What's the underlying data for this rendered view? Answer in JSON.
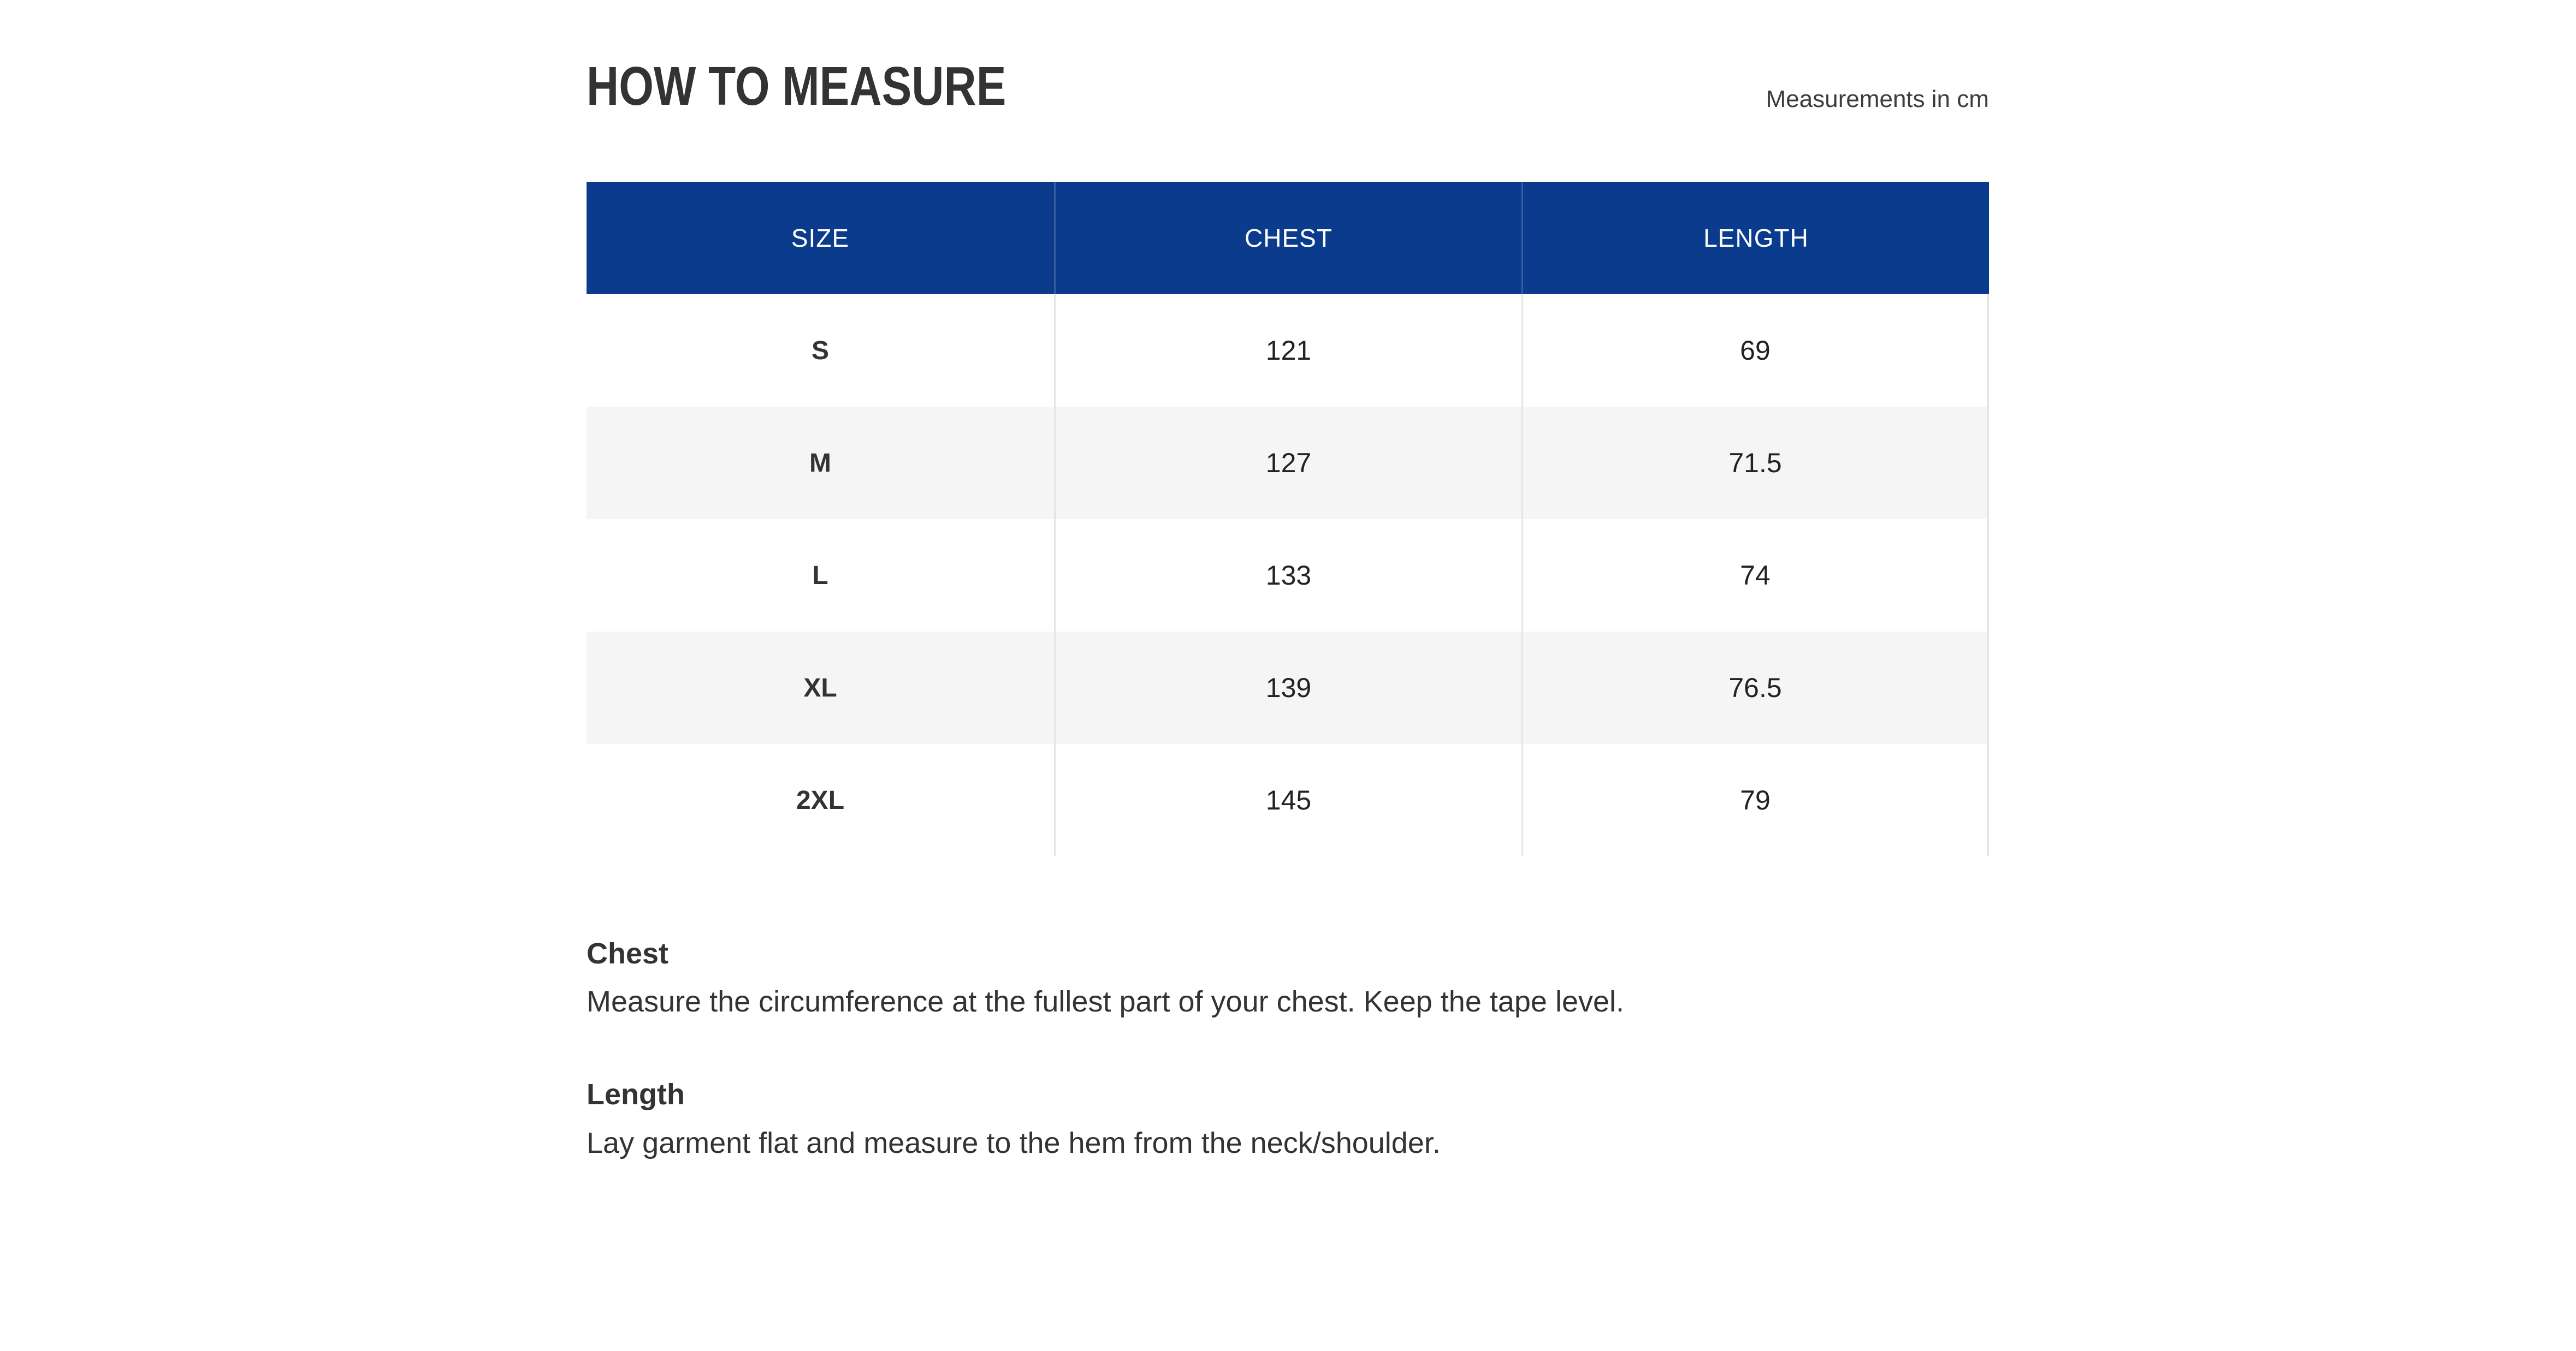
{
  "page": {
    "title": "HOW TO MEASURE",
    "unit_note": "Measurements in cm"
  },
  "table": {
    "columns": [
      "SIZE",
      "CHEST",
      "LENGTH"
    ],
    "rows": [
      {
        "size": "S",
        "chest": "121",
        "length": "69"
      },
      {
        "size": "M",
        "chest": "127",
        "length": "71.5"
      },
      {
        "size": "L",
        "chest": "133",
        "length": "74"
      },
      {
        "size": "XL",
        "chest": "139",
        "length": "76.5"
      },
      {
        "size": "2XL",
        "chest": "145",
        "length": "79"
      }
    ]
  },
  "notes": [
    {
      "title": "Chest",
      "text": "Measure the circumference at the fullest part of your chest. Keep the tape level."
    },
    {
      "title": "Length",
      "text": "Lay garment flat and measure to the hem from the neck/shoulder."
    }
  ],
  "colors": {
    "header_bg": "#0b3b8c",
    "header_text": "#ffffff",
    "zebra_row": "#f5f5f5",
    "divider": "#e4e4e4",
    "text": "#333333"
  }
}
